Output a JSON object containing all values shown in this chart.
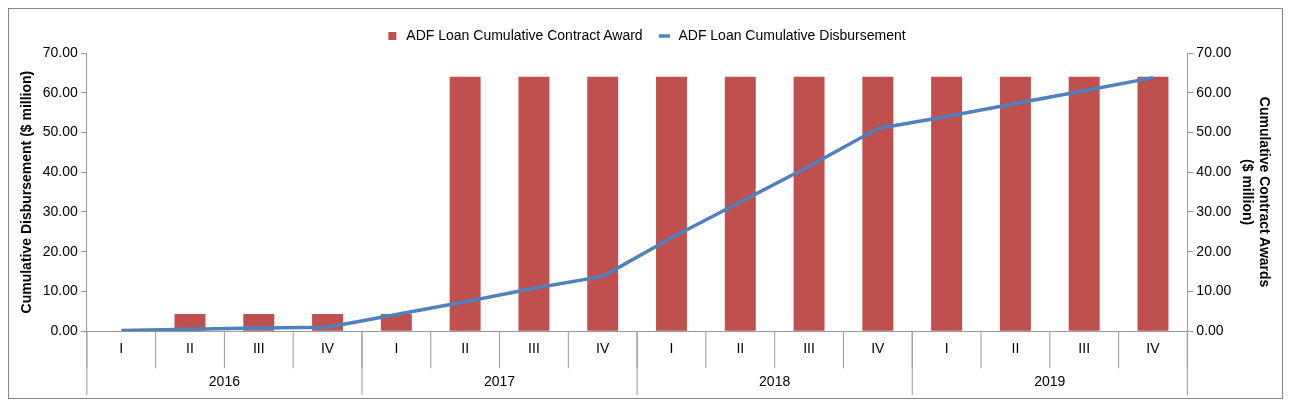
{
  "chart_data": {
    "type": "bar",
    "categories": [
      "I",
      "II",
      "III",
      "IV",
      "I",
      "II",
      "III",
      "IV",
      "I",
      "II",
      "III",
      "IV",
      "I",
      "II",
      "III",
      "IV"
    ],
    "annotations": [
      "2016",
      "2017",
      "2018",
      "2019"
    ],
    "series": [
      {
        "name": "ADF Loan Cumulative Contract Award",
        "axis": "y2",
        "color": "#c0504d",
        "values": [
          null,
          4.3,
          4.3,
          4.3,
          4.3,
          64,
          64,
          64,
          64,
          64,
          64,
          64,
          64,
          64,
          64,
          64
        ]
      },
      {
        "name": "ADF Loan Cumulative Disbursement",
        "type": "line",
        "color": "#4f81bd",
        "values": [
          0.2,
          0.5,
          0.8,
          1.0,
          4.2,
          7.4,
          10.8,
          13.8,
          23.5,
          32.5,
          41.5,
          51,
          54,
          57.3,
          60.5,
          63.8
        ]
      }
    ],
    "ylabel": "Cumulative Disbursement ($ million)",
    "y2label": "Cumulative Contract Awards\n($ million)",
    "ylim": [
      0,
      70
    ],
    "yticks": [
      {
        "value": 0,
        "label": "0.00"
      },
      {
        "value": 10,
        "label": "10.00"
      },
      {
        "value": 20,
        "label": "20.00"
      },
      {
        "value": 30,
        "label": "30.00"
      },
      {
        "value": 40,
        "label": "40.00"
      },
      {
        "value": 50,
        "label": "50.00"
      },
      {
        "value": 60,
        "label": "60.00"
      },
      {
        "value": 70,
        "label": "70.00"
      }
    ],
    "y2lim": [
      0,
      70
    ],
    "y2ticks": [
      {
        "value": 0,
        "label": "0.00"
      },
      {
        "value": 10,
        "label": "10.00"
      },
      {
        "value": 20,
        "label": "20.00"
      },
      {
        "value": 30,
        "label": "30.00"
      },
      {
        "value": 40,
        "label": "40.00"
      },
      {
        "value": 50,
        "label": "50.00"
      },
      {
        "value": 60,
        "label": "60.00"
      },
      {
        "value": 70,
        "label": "70.00"
      }
    ],
    "legend": "top",
    "grid": false,
    "marker": "none"
  }
}
